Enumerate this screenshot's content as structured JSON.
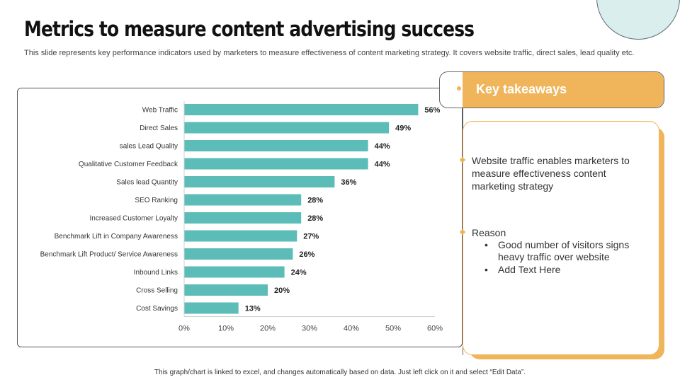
{
  "slide": {
    "title": "Metrics to measure content advertising success",
    "subtitle": "This slide represents key performance indicators used by marketers to measure effectiveness of content marketing strategy. It covers website traffic, direct sales, lead quality etc.",
    "footer": "This graph/chart is linked to excel, and changes automatically based on data. Just left click on it and select “Edit Data”."
  },
  "colors": {
    "bar": "#5bbcb8",
    "accent": "#f0b45a",
    "decor_circle": "#dbeeee"
  },
  "chart_data": {
    "type": "bar",
    "orientation": "horizontal",
    "categories": [
      "Web Traffic",
      "Direct Sales",
      "sales Lead Quality",
      "Qualitative Customer Feedback",
      "Sales lead Quantity",
      "SEO Ranking",
      "Increased Customer Loyalty",
      "Benchmark Lift in Company Awareness",
      "Benchmark Lift Product/ Service Awareness",
      "Inbound Links",
      "Cross Selling",
      "Cost Savings"
    ],
    "values": [
      56,
      49,
      44,
      44,
      36,
      28,
      28,
      27,
      26,
      24,
      20,
      13
    ],
    "value_labels": [
      "56%",
      "49%",
      "44%",
      "44%",
      "36%",
      "28%",
      "28%",
      "27%",
      "26%",
      "24%",
      "20%",
      "13%"
    ],
    "xlim": [
      0,
      60
    ],
    "x_ticks": [
      0,
      10,
      20,
      30,
      40,
      50,
      60
    ],
    "x_tick_labels": [
      "0%",
      "10%",
      "20%",
      "30%",
      "40%",
      "50%",
      "60%"
    ],
    "grid": false,
    "legend": "none"
  },
  "takeaways": {
    "title": "Key takeaways",
    "point": "Website traffic enables marketers to measure effectiveness content marketing strategy",
    "reason_title": "Reason",
    "reasons": [
      "Good number of visitors signs heavy traffic over website",
      "Add Text Here"
    ]
  }
}
